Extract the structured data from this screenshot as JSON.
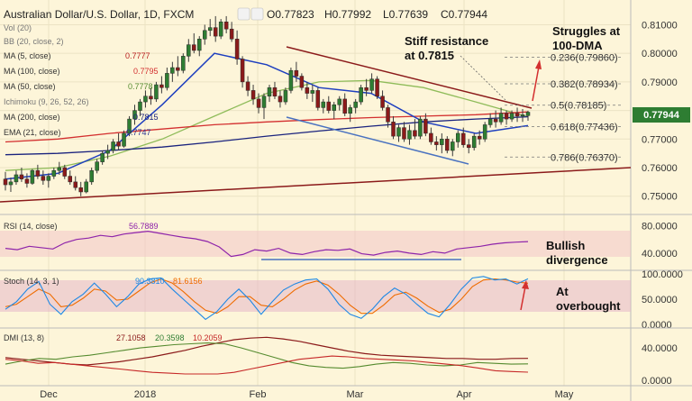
{
  "header": {
    "title": "Australian Dollar/U.S. Dollar, 1D, FXCM",
    "ohlc": {
      "open": "O0.77823",
      "high": "H0.77992",
      "low": "L0.77639",
      "close": "C0.77944"
    }
  },
  "indicators": {
    "vol": "Vol (20)",
    "bb": "BB (20, close, 2)",
    "ma5": {
      "label": "MA (5, close)",
      "value": "0.7777",
      "color": "#b71c1c"
    },
    "ma100": {
      "label": "MA (100, close)",
      "value": "0.7795",
      "color": "#d32f2f"
    },
    "ma50": {
      "label": "MA (50, close)",
      "value": "0.7778",
      "color": "#558b2f"
    },
    "ichimoku": "Ichimoku (9, 26, 52, 26)",
    "ma200": {
      "label": "MA (200, close)",
      "value": "0.7815",
      "color": "#1a237e"
    },
    "ema21": {
      "label": "EMA (21, close)",
      "value": "0.7747",
      "color": "#283593"
    }
  },
  "annotations": {
    "resistance": [
      "Stiff resistance",
      "at 0.7815"
    ],
    "dma": [
      "Struggles at",
      "100-DMA"
    ],
    "bullish": [
      "Bullish",
      "divergence"
    ],
    "overbought": [
      "At",
      "overbought"
    ]
  },
  "fib_levels": [
    {
      "label": "0.236(0.79860)",
      "value": 0.7986
    },
    {
      "label": "0.382(0.78934)",
      "value": 0.78934
    },
    {
      "label": "0.5(0.78185)",
      "value": 0.78185
    },
    {
      "label": "0.618(0.77436)",
      "value": 0.77436
    },
    {
      "label": "0.786(0.76370)",
      "value": 0.7637
    }
  ],
  "price_axis": {
    "ticks": [
      "0.81000",
      "0.80000",
      "0.79000",
      "0.78000",
      "0.77000",
      "0.76000",
      "0.75000"
    ],
    "last": "0.77944",
    "last_color": "#2e7d32"
  },
  "rsi": {
    "label": "RSI (14, close)",
    "value": "56.7889",
    "value_color": "#8e24aa",
    "ticks": [
      "80.0000",
      "40.0000"
    ]
  },
  "stoch": {
    "label": "Stoch (14, 3, 1)",
    "k": "90.3810",
    "d": "81.6156",
    "ticks": [
      "100.0000",
      "50.0000",
      "0.0000"
    ]
  },
  "dmi": {
    "label": "DMI (13, 8)",
    "adx": "27.1058",
    "plus": "20.3598",
    "minus": "10.2059",
    "ticks": [
      "40.0000",
      "0.0000"
    ]
  },
  "x_axis": {
    "labels": [
      "Dec",
      "2018",
      "Feb",
      "Mar",
      "Apr",
      "May"
    ]
  },
  "chart_data": {
    "type": "candlestick",
    "title": "Australian Dollar/U.S. Dollar, 1D, FXCM",
    "ylim": [
      0.7455,
      0.8155
    ],
    "candles": [
      [
        0.756,
        0.7585,
        0.752,
        0.754
      ],
      [
        0.754,
        0.7565,
        0.7515,
        0.755
      ],
      [
        0.755,
        0.759,
        0.754,
        0.7575
      ],
      [
        0.7575,
        0.76,
        0.755,
        0.756
      ],
      [
        0.756,
        0.758,
        0.753,
        0.7545
      ],
      [
        0.7545,
        0.7595,
        0.754,
        0.759
      ],
      [
        0.759,
        0.761,
        0.756,
        0.757
      ],
      [
        0.757,
        0.759,
        0.754,
        0.7555
      ],
      [
        0.7555,
        0.758,
        0.753,
        0.757
      ],
      [
        0.757,
        0.76,
        0.756,
        0.759
      ],
      [
        0.759,
        0.762,
        0.7575,
        0.76
      ],
      [
        0.76,
        0.761,
        0.756,
        0.757
      ],
      [
        0.757,
        0.759,
        0.754,
        0.755
      ],
      [
        0.755,
        0.757,
        0.752,
        0.753
      ],
      [
        0.753,
        0.755,
        0.75,
        0.7515
      ],
      [
        0.7515,
        0.756,
        0.751,
        0.755
      ],
      [
        0.755,
        0.76,
        0.754,
        0.759
      ],
      [
        0.759,
        0.763,
        0.758,
        0.762
      ],
      [
        0.762,
        0.766,
        0.761,
        0.765
      ],
      [
        0.765,
        0.768,
        0.763,
        0.766
      ],
      [
        0.766,
        0.77,
        0.765,
        0.769
      ],
      [
        0.769,
        0.772,
        0.766,
        0.7675
      ],
      [
        0.7675,
        0.773,
        0.767,
        0.772
      ],
      [
        0.772,
        0.778,
        0.771,
        0.777
      ],
      [
        0.777,
        0.782,
        0.775,
        0.78
      ],
      [
        0.78,
        0.784,
        0.778,
        0.783
      ],
      [
        0.783,
        0.787,
        0.781,
        0.785
      ],
      [
        0.785,
        0.788,
        0.782,
        0.784
      ],
      [
        0.784,
        0.79,
        0.783,
        0.789
      ],
      [
        0.789,
        0.792,
        0.786,
        0.788
      ],
      [
        0.788,
        0.795,
        0.787,
        0.793
      ],
      [
        0.793,
        0.797,
        0.79,
        0.795
      ],
      [
        0.795,
        0.799,
        0.792,
        0.794
      ],
      [
        0.794,
        0.8,
        0.793,
        0.799
      ],
      [
        0.799,
        0.805,
        0.797,
        0.803
      ],
      [
        0.803,
        0.807,
        0.8,
        0.801
      ],
      [
        0.801,
        0.806,
        0.799,
        0.805
      ],
      [
        0.805,
        0.81,
        0.803,
        0.808
      ],
      [
        0.808,
        0.812,
        0.806,
        0.809
      ],
      [
        0.809,
        0.813,
        0.804,
        0.806
      ],
      [
        0.806,
        0.812,
        0.805,
        0.811
      ],
      [
        0.811,
        0.813,
        0.807,
        0.8085
      ],
      [
        0.8085,
        0.811,
        0.804,
        0.805
      ],
      [
        0.805,
        0.808,
        0.796,
        0.798
      ],
      [
        0.798,
        0.799,
        0.788,
        0.79
      ],
      [
        0.79,
        0.792,
        0.785,
        0.787
      ],
      [
        0.787,
        0.789,
        0.782,
        0.784
      ],
      [
        0.784,
        0.786,
        0.779,
        0.781
      ],
      [
        0.781,
        0.786,
        0.777,
        0.785
      ],
      [
        0.785,
        0.789,
        0.783,
        0.788
      ],
      [
        0.788,
        0.79,
        0.784,
        0.785
      ],
      [
        0.785,
        0.787,
        0.781,
        0.783
      ],
      [
        0.783,
        0.788,
        0.782,
        0.787
      ],
      [
        0.787,
        0.795,
        0.786,
        0.794
      ],
      [
        0.794,
        0.797,
        0.79,
        0.792
      ],
      [
        0.792,
        0.793,
        0.787,
        0.788
      ],
      [
        0.788,
        0.79,
        0.784,
        0.786
      ],
      [
        0.786,
        0.789,
        0.783,
        0.787
      ],
      [
        0.787,
        0.788,
        0.78,
        0.781
      ],
      [
        0.781,
        0.784,
        0.779,
        0.783
      ],
      [
        0.783,
        0.785,
        0.779,
        0.78
      ],
      [
        0.78,
        0.783,
        0.777,
        0.782
      ],
      [
        0.782,
        0.785,
        0.78,
        0.784
      ],
      [
        0.784,
        0.786,
        0.778,
        0.779
      ],
      [
        0.779,
        0.782,
        0.776,
        0.781
      ],
      [
        0.781,
        0.784,
        0.779,
        0.783
      ],
      [
        0.783,
        0.789,
        0.782,
        0.788
      ],
      [
        0.788,
        0.791,
        0.785,
        0.787
      ],
      [
        0.787,
        0.793,
        0.786,
        0.791
      ],
      [
        0.791,
        0.792,
        0.784,
        0.785
      ],
      [
        0.785,
        0.787,
        0.78,
        0.781
      ],
      [
        0.781,
        0.782,
        0.774,
        0.776
      ],
      [
        0.776,
        0.778,
        0.77,
        0.771
      ],
      [
        0.771,
        0.775,
        0.769,
        0.774
      ],
      [
        0.774,
        0.776,
        0.769,
        0.77
      ],
      [
        0.77,
        0.775,
        0.768,
        0.773
      ],
      [
        0.773,
        0.777,
        0.77,
        0.771
      ],
      [
        0.771,
        0.778,
        0.77,
        0.777
      ],
      [
        0.777,
        0.779,
        0.771,
        0.772
      ],
      [
        0.772,
        0.774,
        0.768,
        0.769
      ],
      [
        0.769,
        0.771,
        0.766,
        0.768
      ],
      [
        0.768,
        0.772,
        0.765,
        0.77
      ],
      [
        0.77,
        0.771,
        0.765,
        0.766
      ],
      [
        0.766,
        0.77,
        0.764,
        0.769
      ],
      [
        0.769,
        0.773,
        0.767,
        0.772
      ],
      [
        0.772,
        0.774,
        0.767,
        0.768
      ],
      [
        0.768,
        0.77,
        0.765,
        0.767
      ],
      [
        0.767,
        0.772,
        0.766,
        0.771
      ],
      [
        0.771,
        0.773,
        0.768,
        0.77
      ],
      [
        0.77,
        0.776,
        0.769,
        0.775
      ],
      [
        0.775,
        0.779,
        0.774,
        0.777
      ],
      [
        0.777,
        0.78,
        0.774,
        0.776
      ],
      [
        0.776,
        0.781,
        0.775,
        0.779
      ],
      [
        0.779,
        0.78,
        0.775,
        0.777
      ],
      [
        0.777,
        0.78,
        0.776,
        0.779
      ],
      [
        0.779,
        0.781,
        0.776,
        0.778
      ],
      [
        0.778,
        0.7805,
        0.776,
        0.7785
      ],
      [
        0.7782,
        0.7799,
        0.7764,
        0.7794
      ]
    ],
    "ma_lines": {
      "ma100": [
        0.769,
        0.77,
        0.772,
        0.7735,
        0.775,
        0.776,
        0.7768,
        0.7775,
        0.778,
        0.7785,
        0.7795
      ],
      "ma200": [
        0.7645,
        0.765,
        0.766,
        0.7672,
        0.769,
        0.771,
        0.7728,
        0.7745,
        0.776,
        0.777,
        0.7778
      ],
      "ma50": [
        0.759,
        0.76,
        0.764,
        0.77,
        0.778,
        0.786,
        0.79,
        0.7905,
        0.788,
        0.783,
        0.7778
      ],
      "ema21": [
        0.756,
        0.758,
        0.766,
        0.782,
        0.8,
        0.796,
        0.788,
        0.786,
        0.776,
        0.772,
        0.7747
      ]
    },
    "rsi_values": [
      47,
      45,
      50,
      48,
      46,
      55,
      60,
      62,
      66,
      64,
      68,
      70,
      72,
      69,
      66,
      63,
      61,
      57,
      49,
      35,
      38,
      45,
      43,
      47,
      40,
      38,
      42,
      45,
      44,
      46,
      39,
      37,
      41,
      43,
      40,
      38,
      42,
      40,
      46,
      48,
      50,
      53,
      55,
      56,
      56.8
    ],
    "stoch_k": [
      30,
      45,
      70,
      85,
      40,
      20,
      45,
      60,
      82,
      60,
      35,
      55,
      80,
      90,
      92,
      70,
      50,
      30,
      10,
      25,
      50,
      70,
      48,
      20,
      45,
      68,
      80,
      88,
      90,
      70,
      40,
      20,
      12,
      30,
      55,
      72,
      60,
      40,
      22,
      15,
      40,
      70,
      92,
      95,
      88,
      90,
      80,
      90.4
    ],
    "stoch_d": [
      35,
      40,
      55,
      70,
      60,
      35,
      38,
      52,
      70,
      66,
      48,
      50,
      66,
      82,
      90,
      82,
      65,
      45,
      28,
      22,
      35,
      55,
      55,
      38,
      35,
      50,
      68,
      80,
      86,
      78,
      60,
      38,
      22,
      22,
      38,
      58,
      64,
      52,
      36,
      24,
      30,
      50,
      75,
      88,
      90,
      88,
      84,
      81.6
    ],
    "dmi_adx": [
      28,
      26,
      24,
      22,
      20,
      19,
      21,
      23,
      26,
      29,
      33,
      37,
      42,
      46,
      50,
      52,
      53,
      51,
      48,
      44,
      40,
      36,
      33,
      31,
      30,
      29,
      28,
      27,
      27,
      26,
      26,
      27,
      27.1
    ],
    "dmi_plus": [
      20,
      24,
      27,
      26,
      29,
      31,
      34,
      37,
      40,
      42,
      44,
      45,
      46,
      45,
      40,
      34,
      28,
      22,
      18,
      16,
      15,
      17,
      20,
      22,
      21,
      19,
      18,
      19,
      22,
      21,
      20,
      20.4
    ],
    "dmi_minus": [
      26,
      24,
      21,
      22,
      20,
      18,
      16,
      14,
      12,
      10,
      9,
      8,
      8,
      8,
      10,
      14,
      18,
      22,
      26,
      28,
      30,
      29,
      27,
      26,
      25,
      24,
      22,
      20,
      18,
      15,
      12,
      11,
      10.2
    ]
  }
}
